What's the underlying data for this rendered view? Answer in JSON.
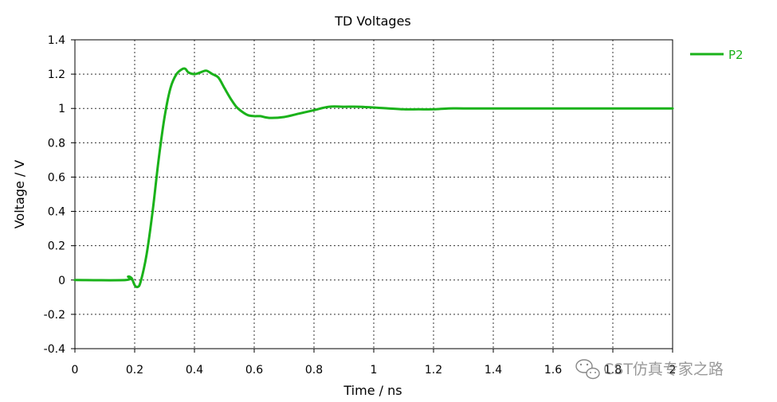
{
  "chart_data": {
    "type": "line",
    "title": "TD Voltages",
    "xlabel": "Time / ns",
    "ylabel": "Voltage / V",
    "xlim": [
      0,
      2
    ],
    "ylim": [
      -0.4,
      1.4
    ],
    "x_ticks": [
      "0",
      "0.2",
      "0.4",
      "0.6",
      "0.8",
      "1",
      "1.2",
      "1.4",
      "1.6",
      "1.8",
      "2"
    ],
    "y_ticks": [
      "1.4",
      "1.2",
      "1",
      "0.8",
      "0.6",
      "0.4",
      "0.2",
      "0",
      "-0.2",
      "-0.4"
    ],
    "grid": true,
    "legend_position": "top-right",
    "series": [
      {
        "name": "P2",
        "color": "#1ab21a",
        "x": [
          0,
          0.17,
          0.178,
          0.19,
          0.2,
          0.21,
          0.22,
          0.24,
          0.26,
          0.28,
          0.3,
          0.32,
          0.34,
          0.36,
          0.37,
          0.38,
          0.4,
          0.42,
          0.44,
          0.46,
          0.48,
          0.5,
          0.52,
          0.54,
          0.56,
          0.58,
          0.6,
          0.62,
          0.65,
          0.7,
          0.75,
          0.8,
          0.85,
          0.9,
          0.95,
          1.0,
          1.05,
          1.1,
          1.15,
          1.2,
          1.25,
          1.3,
          1.4,
          1.6,
          1.8,
          2.0
        ],
        "y": [
          0,
          0,
          0.02,
          0.01,
          -0.03,
          -0.04,
          -0.01,
          0.15,
          0.4,
          0.7,
          0.95,
          1.12,
          1.2,
          1.23,
          1.23,
          1.21,
          1.2,
          1.21,
          1.22,
          1.2,
          1.18,
          1.12,
          1.06,
          1.01,
          0.98,
          0.96,
          0.955,
          0.955,
          0.945,
          0.95,
          0.97,
          0.99,
          1.01,
          1.01,
          1.01,
          1.005,
          1.0,
          0.995,
          0.995,
          0.995,
          1.0,
          1.0,
          1.0,
          1.0,
          1.0,
          1.0
        ]
      }
    ]
  },
  "watermark": {
    "text": "CST仿真专家之路",
    "icon": "wechat-icon"
  }
}
